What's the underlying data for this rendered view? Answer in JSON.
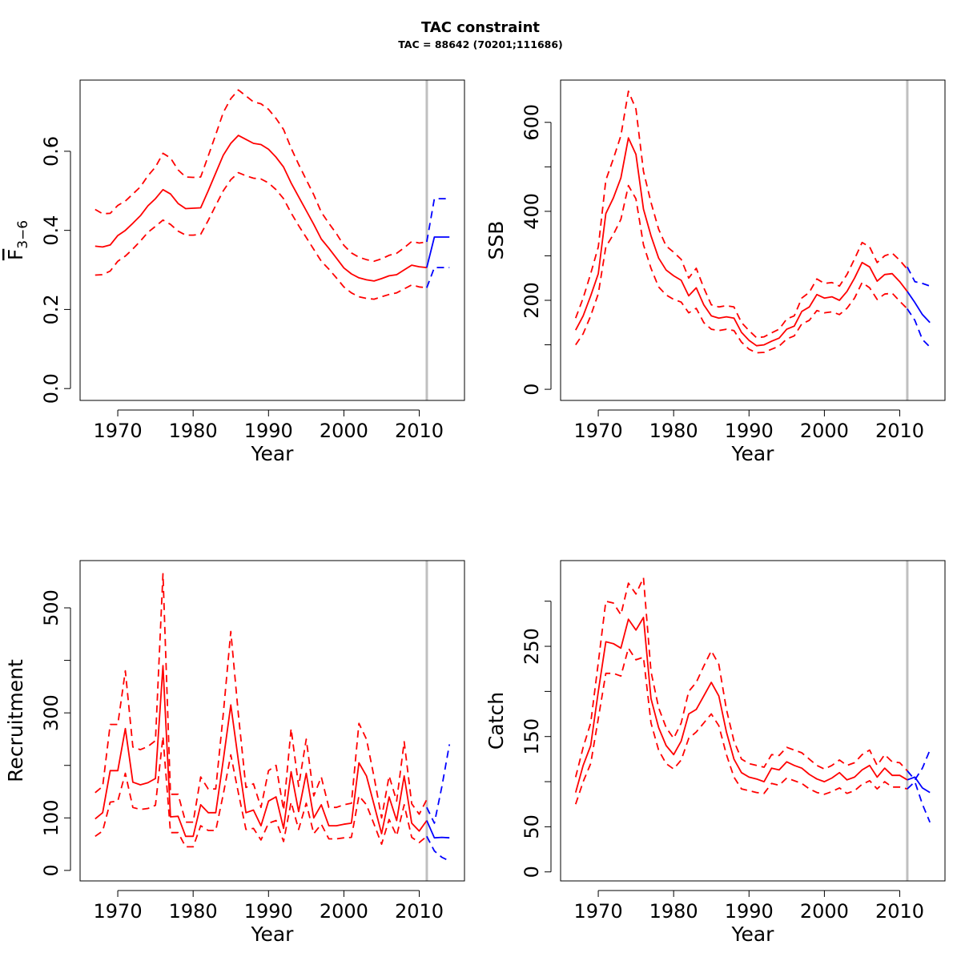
{
  "figure": {
    "title": "TAC constraint",
    "subtitle": "TAC = 88642 (70201;111686)",
    "colors": {
      "estimate": "#ff0000",
      "forecast": "#0000ff",
      "divider": "#c0c0c0",
      "frame": "#000000"
    }
  },
  "chart_data": [
    {
      "type": "line",
      "id": "fbar",
      "title": "",
      "xlabel": "Year",
      "ylabel": "F",
      "ylabel_sub": "3−6",
      "ylabel_overline": true,
      "xlim": [
        1965,
        2016
      ],
      "ylim": [
        -0.03,
        0.78
      ],
      "xticks": [
        1970,
        1980,
        1990,
        2000,
        2010
      ],
      "yticks": [
        0.0,
        0.2,
        0.4,
        0.6
      ],
      "ytick_labels": [
        "0.0",
        "0.2",
        "0.4",
        "0.6"
      ],
      "yminor": [],
      "divider_year": 2011,
      "historic": {
        "x": [
          1967,
          1968,
          1969,
          1970,
          1971,
          1972,
          1973,
          1974,
          1975,
          1976,
          1977,
          1978,
          1979,
          1980,
          1981,
          1982,
          1983,
          1984,
          1985,
          1986,
          1987,
          1988,
          1989,
          1990,
          1991,
          1992,
          1993,
          1994,
          1995,
          1996,
          1997,
          1998,
          1999,
          2000,
          2001,
          2002,
          2003,
          2004,
          2005,
          2006,
          2007,
          2008,
          2009,
          2010,
          2011
        ],
        "estimate": [
          0.36,
          0.358,
          0.363,
          0.387,
          0.4,
          0.418,
          0.437,
          0.462,
          0.48,
          0.503,
          0.492,
          0.468,
          0.455,
          0.456,
          0.457,
          0.5,
          0.545,
          0.59,
          0.62,
          0.64,
          0.63,
          0.62,
          0.617,
          0.605,
          0.585,
          0.56,
          0.52,
          0.485,
          0.45,
          0.415,
          0.378,
          0.355,
          0.33,
          0.305,
          0.29,
          0.28,
          0.275,
          0.272,
          0.278,
          0.285,
          0.288,
          0.3,
          0.312,
          0.308,
          0.306
        ],
        "lower": [
          0.287,
          0.288,
          0.297,
          0.322,
          0.335,
          0.353,
          0.373,
          0.395,
          0.41,
          0.426,
          0.415,
          0.398,
          0.388,
          0.388,
          0.39,
          0.425,
          0.463,
          0.5,
          0.528,
          0.546,
          0.538,
          0.532,
          0.53,
          0.52,
          0.503,
          0.48,
          0.444,
          0.412,
          0.382,
          0.352,
          0.322,
          0.302,
          0.28,
          0.257,
          0.242,
          0.232,
          0.228,
          0.226,
          0.232,
          0.238,
          0.242,
          0.252,
          0.262,
          0.257,
          0.255
        ],
        "upper": [
          0.453,
          0.442,
          0.443,
          0.463,
          0.474,
          0.492,
          0.51,
          0.538,
          0.56,
          0.595,
          0.583,
          0.553,
          0.535,
          0.534,
          0.535,
          0.588,
          0.642,
          0.698,
          0.733,
          0.755,
          0.74,
          0.725,
          0.72,
          0.706,
          0.683,
          0.655,
          0.608,
          0.567,
          0.528,
          0.49,
          0.446,
          0.418,
          0.392,
          0.362,
          0.343,
          0.332,
          0.326,
          0.322,
          0.328,
          0.337,
          0.342,
          0.356,
          0.372,
          0.368,
          0.371
        ]
      },
      "forecast": {
        "x": [
          2011,
          2012,
          2013,
          2014
        ],
        "estimate": [
          0.306,
          0.383,
          0.383,
          0.383
        ],
        "lower": [
          0.255,
          0.306,
          0.306,
          0.306
        ],
        "upper": [
          0.371,
          0.48,
          0.48,
          0.48
        ]
      }
    },
    {
      "type": "line",
      "id": "ssb",
      "title": "",
      "xlabel": "Year",
      "ylabel": "SSB",
      "xlim": [
        1965,
        2016
      ],
      "ylim": [
        -25,
        695
      ],
      "xticks": [
        1970,
        1980,
        1990,
        2000,
        2010
      ],
      "yticks": [
        0,
        200,
        400,
        600
      ],
      "ytick_labels": [
        "0",
        "200",
        "400",
        "600"
      ],
      "yminor": [
        100,
        300,
        500
      ],
      "divider_year": 2011,
      "historic": {
        "x": [
          1967,
          1968,
          1969,
          1970,
          1971,
          1972,
          1973,
          1974,
          1975,
          1976,
          1977,
          1978,
          1979,
          1980,
          1981,
          1982,
          1983,
          1984,
          1985,
          1986,
          1987,
          1988,
          1989,
          1990,
          1991,
          1992,
          1993,
          1994,
          1995,
          1996,
          1997,
          1998,
          1999,
          2000,
          2001,
          2002,
          2003,
          2004,
          2005,
          2006,
          2007,
          2008,
          2009,
          2010,
          2011
        ],
        "estimate": [
          133,
          165,
          210,
          260,
          395,
          430,
          475,
          565,
          528,
          405,
          345,
          295,
          268,
          255,
          245,
          210,
          228,
          190,
          165,
          160,
          163,
          160,
          128,
          110,
          98,
          100,
          108,
          115,
          135,
          142,
          175,
          185,
          213,
          205,
          208,
          200,
          220,
          250,
          285,
          275,
          243,
          258,
          260,
          242,
          220
        ],
        "lower": [
          100,
          125,
          165,
          215,
          320,
          348,
          382,
          458,
          428,
          325,
          272,
          230,
          212,
          202,
          196,
          172,
          182,
          150,
          135,
          132,
          135,
          132,
          106,
          90,
          82,
          83,
          90,
          97,
          113,
          120,
          147,
          155,
          177,
          172,
          174,
          168,
          182,
          205,
          240,
          228,
          202,
          214,
          216,
          198,
          181
        ],
        "upper": [
          160,
          205,
          260,
          320,
          470,
          518,
          570,
          670,
          630,
          490,
          420,
          360,
          322,
          308,
          292,
          250,
          272,
          228,
          190,
          185,
          188,
          185,
          150,
          132,
          116,
          118,
          127,
          135,
          158,
          165,
          205,
          218,
          248,
          238,
          240,
          232,
          258,
          293,
          330,
          320,
          285,
          300,
          306,
          290,
          270
        ]
      },
      "forecast": {
        "x": [
          2011,
          2012,
          2013,
          2014
        ],
        "estimate": [
          220,
          195,
          168,
          150
        ],
        "lower": [
          181,
          155,
          112,
          95
        ],
        "upper": [
          275,
          242,
          238,
          232
        ]
      }
    },
    {
      "type": "line",
      "id": "recruitment",
      "title": "",
      "xlabel": "Year",
      "ylabel": "Recruitment",
      "xlim": [
        1965,
        2016
      ],
      "ylim": [
        -20,
        590
      ],
      "xticks": [
        1970,
        1980,
        1990,
        2000,
        2010
      ],
      "yticks": [
        0,
        100,
        300,
        500
      ],
      "ytick_labels": [
        "0",
        "100",
        "300",
        "500"
      ],
      "yminor": [
        200,
        400
      ],
      "divider_year": 2011,
      "historic": {
        "x": [
          1967,
          1968,
          1969,
          1970,
          1971,
          1972,
          1973,
          1974,
          1975,
          1976,
          1977,
          1978,
          1979,
          1980,
          1981,
          1982,
          1983,
          1984,
          1985,
          1986,
          1987,
          1988,
          1989,
          1990,
          1991,
          1992,
          1993,
          1994,
          1995,
          1996,
          1997,
          1998,
          1999,
          2000,
          2001,
          2002,
          2003,
          2004,
          2005,
          2006,
          2007,
          2008,
          2009,
          2010,
          2011
        ],
        "estimate": [
          98,
          110,
          190,
          190,
          270,
          168,
          163,
          167,
          175,
          390,
          102,
          103,
          65,
          65,
          125,
          110,
          110,
          210,
          315,
          210,
          110,
          115,
          85,
          132,
          140,
          80,
          188,
          112,
          185,
          100,
          125,
          85,
          85,
          88,
          90,
          205,
          180,
          125,
          70,
          140,
          95,
          180,
          90,
          75,
          95
        ],
        "lower": [
          65,
          75,
          130,
          132,
          185,
          120,
          116,
          118,
          124,
          255,
          72,
          72,
          45,
          45,
          85,
          76,
          76,
          145,
          220,
          148,
          78,
          80,
          58,
          90,
          95,
          55,
          130,
          78,
          128,
          70,
          88,
          60,
          60,
          62,
          63,
          142,
          125,
          88,
          50,
          97,
          66,
          125,
          63,
          53,
          65
        ],
        "upper": [
          148,
          160,
          278,
          278,
          380,
          235,
          230,
          236,
          247,
          565,
          145,
          145,
          92,
          92,
          178,
          155,
          155,
          298,
          455,
          298,
          158,
          165,
          120,
          190,
          200,
          115,
          270,
          160,
          250,
          142,
          178,
          120,
          120,
          125,
          128,
          280,
          250,
          178,
          100,
          180,
          132,
          245,
          127,
          107,
          135
        ]
      },
      "forecast": {
        "x": [
          2011,
          2012,
          2013,
          2014
        ],
        "estimate": [
          95,
          62,
          63,
          62
        ],
        "lower": [
          65,
          37,
          25,
          18
        ],
        "upper": [
          120,
          90,
          160,
          240
        ]
      }
    },
    {
      "type": "line",
      "id": "catch",
      "title": "",
      "xlabel": "Year",
      "ylabel": "Catch",
      "xlim": [
        1965,
        2016
      ],
      "ylim": [
        -10,
        345
      ],
      "xticks": [
        1970,
        1980,
        1990,
        2000,
        2010
      ],
      "yticks": [
        0,
        50,
        150,
        250
      ],
      "ytick_labels": [
        "0",
        "50",
        "150",
        "250"
      ],
      "yminor": [
        100,
        200,
        300
      ],
      "divider_year": 2011,
      "historic": {
        "x": [
          1967,
          1968,
          1969,
          1970,
          1971,
          1972,
          1973,
          1974,
          1975,
          1976,
          1977,
          1978,
          1979,
          1980,
          1981,
          1982,
          1983,
          1984,
          1985,
          1986,
          1987,
          1988,
          1989,
          1990,
          1991,
          1992,
          1993,
          1994,
          1995,
          1996,
          1997,
          1998,
          1999,
          2000,
          2001,
          2002,
          2003,
          2004,
          2005,
          2006,
          2007,
          2008,
          2009,
          2010,
          2011
        ],
        "estimate": [
          88,
          118,
          140,
          200,
          255,
          253,
          248,
          280,
          268,
          282,
          192,
          160,
          140,
          130,
          145,
          175,
          180,
          195,
          210,
          195,
          155,
          125,
          110,
          105,
          103,
          100,
          115,
          113,
          122,
          118,
          115,
          108,
          103,
          100,
          104,
          110,
          102,
          105,
          113,
          118,
          105,
          115,
          107,
          107,
          102
        ],
        "lower": [
          75,
          100,
          120,
          170,
          220,
          220,
          217,
          248,
          235,
          238,
          165,
          135,
          120,
          114,
          124,
          148,
          155,
          165,
          175,
          162,
          130,
          105,
          92,
          90,
          88,
          87,
          98,
          96,
          104,
          101,
          98,
          92,
          88,
          86,
          89,
          93,
          87,
          90,
          97,
          101,
          92,
          100,
          94,
          94,
          92
        ],
        "upper": [
          105,
          138,
          165,
          232,
          300,
          298,
          285,
          320,
          308,
          326,
          222,
          182,
          160,
          148,
          165,
          200,
          210,
          228,
          245,
          230,
          180,
          145,
          125,
          120,
          118,
          116,
          130,
          129,
          138,
          135,
          132,
          125,
          118,
          114,
          118,
          124,
          118,
          121,
          130,
          135,
          118,
          130,
          122,
          121,
          112
        ]
      },
      "forecast": {
        "x": [
          2011,
          2012,
          2013,
          2014
        ],
        "estimate": [
          102,
          105,
          93,
          88
        ],
        "lower": [
          92,
          100,
          75,
          55
        ],
        "upper": [
          112,
          102,
          115,
          135
        ]
      }
    }
  ]
}
